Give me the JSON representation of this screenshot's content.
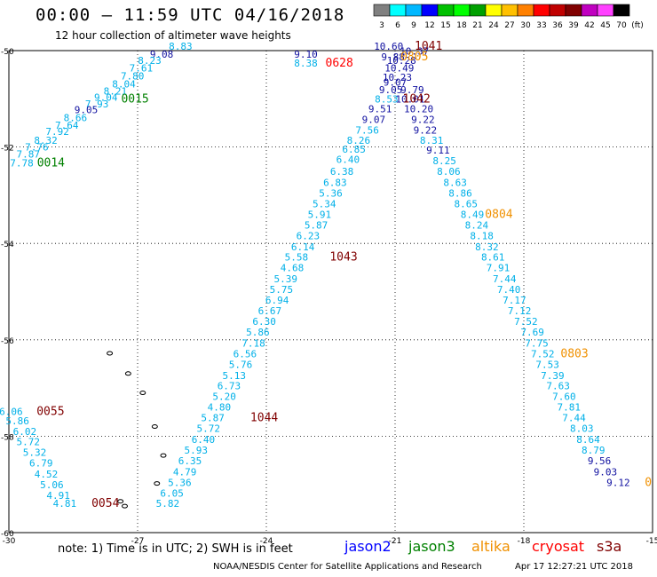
{
  "header": {
    "title": "00:00 – 11:59 UTC 04/16/2018",
    "subtitle": "12 hour collection of altimeter wave heights"
  },
  "colorbar": {
    "labels": [
      "3",
      "6",
      "9",
      "12",
      "15",
      "18",
      "21",
      "24",
      "27",
      "30",
      "33",
      "36",
      "39",
      "42",
      "45",
      "70",
      "(ft)"
    ],
    "colors": [
      "#808080",
      "#00ffff",
      "#00b8ff",
      "#0000ff",
      "#00c000",
      "#00ff00",
      "#00a000",
      "#ffff00",
      "#ffc000",
      "#ff8000",
      "#ff0000",
      "#c00000",
      "#800000",
      "#c000c0",
      "#ff40ff",
      "#000000"
    ]
  },
  "axes": {
    "lon_labels": [
      {
        "lon": -30,
        "text": "-30"
      },
      {
        "lon": -27,
        "text": "-27"
      },
      {
        "lon": -24,
        "text": "-24"
      },
      {
        "lon": -21,
        "text": "-21"
      },
      {
        "lon": -18,
        "text": "-18"
      },
      {
        "lon": -15,
        "text": "-15"
      }
    ],
    "lat_labels": [
      {
        "lat": -50,
        "text": "-50"
      },
      {
        "lat": -52,
        "text": "-52"
      },
      {
        "lat": -54,
        "text": "-54"
      },
      {
        "lat": -56,
        "text": "-56"
      },
      {
        "lat": -58,
        "text": "-58"
      },
      {
        "lat": -60,
        "text": "-60"
      }
    ],
    "lon_range": [
      -30,
      -15
    ],
    "lat_range": [
      -60,
      -50
    ]
  },
  "series_colors": {
    "cyan": "#00b0e8",
    "navy": "#1010a0",
    "green": "#008000",
    "orange": "#f09000",
    "red": "#ff0000",
    "dark_red": "#800000"
  },
  "labels": [
    {
      "lon": -26.0,
      "lat": -49.98,
      "text": "8.83",
      "c": "cyan"
    },
    {
      "lon": -26.44,
      "lat": -50.15,
      "text": "9.08",
      "c": "navy"
    },
    {
      "lon": -26.72,
      "lat": -50.28,
      "text": "8.23",
      "c": "cyan"
    },
    {
      "lon": -26.92,
      "lat": -50.43,
      "text": "7.61",
      "c": "cyan"
    },
    {
      "lon": -27.12,
      "lat": -50.6,
      "text": "7.80",
      "c": "cyan"
    },
    {
      "lon": -27.32,
      "lat": -50.76,
      "text": "8.04",
      "c": "cyan"
    },
    {
      "lon": -27.52,
      "lat": -50.91,
      "text": "8.21",
      "c": "cyan"
    },
    {
      "lon": -27.74,
      "lat": -51.04,
      "text": "9.04",
      "c": "cyan"
    },
    {
      "lon": -27.95,
      "lat": -51.18,
      "text": "7.93",
      "c": "cyan"
    },
    {
      "lon": -28.2,
      "lat": -51.3,
      "text": "9.05",
      "c": "navy"
    },
    {
      "lon": -28.45,
      "lat": -51.46,
      "text": "8.66",
      "c": "cyan"
    },
    {
      "lon": -28.65,
      "lat": -51.62,
      "text": "7.64",
      "c": "cyan"
    },
    {
      "lon": -28.87,
      "lat": -51.75,
      "text": "7.92",
      "c": "cyan"
    },
    {
      "lon": -29.14,
      "lat": -51.93,
      "text": "8.32",
      "c": "cyan"
    },
    {
      "lon": -29.35,
      "lat": -52.07,
      "text": "7.76",
      "c": "cyan"
    },
    {
      "lon": -29.55,
      "lat": -52.22,
      "text": "7.87",
      "c": "cyan"
    },
    {
      "lon": -29.7,
      "lat": -52.4,
      "text": "7.78",
      "c": "cyan"
    },
    {
      "lon": -29.02,
      "lat": -52.4,
      "text": "0014",
      "c": "green",
      "id": true
    },
    {
      "lon": -27.06,
      "lat": -51.08,
      "text": "0015",
      "c": "green",
      "id": true
    },
    {
      "lon": -23.08,
      "lat": -50.15,
      "text": "9.10",
      "c": "navy"
    },
    {
      "lon": -23.08,
      "lat": -50.33,
      "text": "8.38",
      "c": "cyan"
    },
    {
      "lon": -22.3,
      "lat": -50.33,
      "text": "0628",
      "c": "red",
      "id": true
    },
    {
      "lon": -21.15,
      "lat": -49.98,
      "text": "10.60",
      "c": "navy"
    },
    {
      "lon": -20.55,
      "lat": -50.08,
      "text": "10.37",
      "c": "navy"
    },
    {
      "lon": -21.05,
      "lat": -50.2,
      "text": "9.88",
      "c": "navy"
    },
    {
      "lon": -20.85,
      "lat": -50.28,
      "text": "10.28",
      "c": "navy"
    },
    {
      "lon": -20.9,
      "lat": -50.43,
      "text": "10.49",
      "c": "navy"
    },
    {
      "lon": -20.95,
      "lat": -50.63,
      "text": "10.23",
      "c": "navy"
    },
    {
      "lon": -21.0,
      "lat": -50.73,
      "text": "9.07",
      "c": "navy"
    },
    {
      "lon": -21.1,
      "lat": -50.88,
      "text": "9.05",
      "c": "navy"
    },
    {
      "lon": -20.6,
      "lat": -50.88,
      "text": "9.79",
      "c": "navy"
    },
    {
      "lon": -21.2,
      "lat": -51.08,
      "text": "8.53",
      "c": "cyan"
    },
    {
      "lon": -20.65,
      "lat": -51.08,
      "text": "10.01",
      "c": "navy"
    },
    {
      "lon": -21.35,
      "lat": -51.28,
      "text": "9.51",
      "c": "navy"
    },
    {
      "lon": -20.45,
      "lat": -51.28,
      "text": "10.20",
      "c": "navy"
    },
    {
      "lon": -21.5,
      "lat": -51.5,
      "text": "9.07",
      "c": "navy"
    },
    {
      "lon": -20.35,
      "lat": -51.5,
      "text": "9.22",
      "c": "navy"
    },
    {
      "lon": -21.65,
      "lat": -51.72,
      "text": "7.56",
      "c": "cyan"
    },
    {
      "lon": -20.3,
      "lat": -51.72,
      "text": "9.22",
      "c": "navy"
    },
    {
      "lon": -20.22,
      "lat": -49.98,
      "text": "1041",
      "c": "dark_red",
      "id": true
    },
    {
      "lon": -20.55,
      "lat": -50.2,
      "text": "0805",
      "c": "orange",
      "id": true
    },
    {
      "lon": -20.5,
      "lat": -51.08,
      "text": "1042",
      "c": "dark_red",
      "id": true
    },
    {
      "lon": -21.85,
      "lat": -51.93,
      "text": "8.26",
      "c": "cyan"
    },
    {
      "lon": -21.96,
      "lat": -52.12,
      "text": "6.85",
      "c": "cyan"
    },
    {
      "lon": -22.1,
      "lat": -52.33,
      "text": "6.40",
      "c": "cyan"
    },
    {
      "lon": -22.24,
      "lat": -52.58,
      "text": "6.38",
      "c": "cyan"
    },
    {
      "lon": -22.4,
      "lat": -52.81,
      "text": "6.83",
      "c": "cyan"
    },
    {
      "lon": -22.5,
      "lat": -53.03,
      "text": "5.36",
      "c": "cyan"
    },
    {
      "lon": -22.65,
      "lat": -53.25,
      "text": "5.34",
      "c": "cyan"
    },
    {
      "lon": -22.76,
      "lat": -53.47,
      "text": "5.91",
      "c": "cyan"
    },
    {
      "lon": -22.84,
      "lat": -53.69,
      "text": "5.87",
      "c": "cyan"
    },
    {
      "lon": -23.03,
      "lat": -53.91,
      "text": "6.23",
      "c": "cyan"
    },
    {
      "lon": -23.15,
      "lat": -54.14,
      "text": "6.14",
      "c": "cyan"
    },
    {
      "lon": -23.3,
      "lat": -54.36,
      "text": "5.58",
      "c": "cyan"
    },
    {
      "lon": -23.4,
      "lat": -54.58,
      "text": "4.68",
      "c": "cyan"
    },
    {
      "lon": -23.55,
      "lat": -54.81,
      "text": "5.39",
      "c": "cyan"
    },
    {
      "lon": -23.65,
      "lat": -55.03,
      "text": "5.75",
      "c": "cyan"
    },
    {
      "lon": -23.75,
      "lat": -55.25,
      "text": "6.94",
      "c": "cyan"
    },
    {
      "lon": -23.92,
      "lat": -55.47,
      "text": "6.67",
      "c": "cyan"
    },
    {
      "lon": -24.05,
      "lat": -55.69,
      "text": "6.30",
      "c": "cyan"
    },
    {
      "lon": -24.2,
      "lat": -55.91,
      "text": "5.86",
      "c": "cyan"
    },
    {
      "lon": -24.3,
      "lat": -56.14,
      "text": "7.18",
      "c": "cyan"
    },
    {
      "lon": -24.5,
      "lat": -56.36,
      "text": "6.56",
      "c": "cyan"
    },
    {
      "lon": -24.6,
      "lat": -56.58,
      "text": "5.76",
      "c": "cyan"
    },
    {
      "lon": -24.75,
      "lat": -56.81,
      "text": "5.13",
      "c": "cyan"
    },
    {
      "lon": -24.87,
      "lat": -57.03,
      "text": "6.73",
      "c": "cyan"
    },
    {
      "lon": -24.98,
      "lat": -57.25,
      "text": "5.20",
      "c": "cyan"
    },
    {
      "lon": -25.1,
      "lat": -57.47,
      "text": "4.80",
      "c": "cyan"
    },
    {
      "lon": -25.25,
      "lat": -57.69,
      "text": "5.87",
      "c": "cyan"
    },
    {
      "lon": -25.35,
      "lat": -57.91,
      "text": "5.72",
      "c": "cyan"
    },
    {
      "lon": -25.47,
      "lat": -58.14,
      "text": "6.40",
      "c": "cyan"
    },
    {
      "lon": -25.64,
      "lat": -58.36,
      "text": "5.93",
      "c": "cyan"
    },
    {
      "lon": -25.78,
      "lat": -58.58,
      "text": "6.35",
      "c": "cyan"
    },
    {
      "lon": -25.9,
      "lat": -58.81,
      "text": "4.79",
      "c": "cyan"
    },
    {
      "lon": -26.02,
      "lat": -59.03,
      "text": "5.36",
      "c": "cyan"
    },
    {
      "lon": -26.2,
      "lat": -59.25,
      "text": "6.05",
      "c": "cyan"
    },
    {
      "lon": -26.3,
      "lat": -59.47,
      "text": "5.82",
      "c": "cyan"
    },
    {
      "lon": -22.2,
      "lat": -54.36,
      "text": "1043",
      "c": "dark_red",
      "id": true
    },
    {
      "lon": -24.05,
      "lat": -57.69,
      "text": "1044",
      "c": "dark_red",
      "id": true
    },
    {
      "lon": -20.15,
      "lat": -51.93,
      "text": "8.31",
      "c": "cyan"
    },
    {
      "lon": -20.0,
      "lat": -52.14,
      "text": "9.11",
      "c": "navy"
    },
    {
      "lon": -19.85,
      "lat": -52.36,
      "text": "8.25",
      "c": "cyan"
    },
    {
      "lon": -19.75,
      "lat": -52.58,
      "text": "8.06",
      "c": "cyan"
    },
    {
      "lon": -19.6,
      "lat": -52.81,
      "text": "8.63",
      "c": "cyan"
    },
    {
      "lon": -19.48,
      "lat": -53.03,
      "text": "8.86",
      "c": "cyan"
    },
    {
      "lon": -19.35,
      "lat": -53.25,
      "text": "8.65",
      "c": "cyan"
    },
    {
      "lon": -19.2,
      "lat": -53.47,
      "text": "8.49",
      "c": "cyan"
    },
    {
      "lon": -19.1,
      "lat": -53.69,
      "text": "8.24",
      "c": "cyan"
    },
    {
      "lon": -18.98,
      "lat": -53.91,
      "text": "8.18",
      "c": "cyan"
    },
    {
      "lon": -18.86,
      "lat": -54.14,
      "text": "8.32",
      "c": "cyan"
    },
    {
      "lon": -18.72,
      "lat": -54.36,
      "text": "8.61",
      "c": "cyan"
    },
    {
      "lon": -18.6,
      "lat": -54.58,
      "text": "7.91",
      "c": "cyan"
    },
    {
      "lon": -18.45,
      "lat": -54.81,
      "text": "7.44",
      "c": "cyan"
    },
    {
      "lon": -18.35,
      "lat": -55.03,
      "text": "7.40",
      "c": "cyan"
    },
    {
      "lon": -18.22,
      "lat": -55.25,
      "text": "7.17",
      "c": "cyan"
    },
    {
      "lon": -18.1,
      "lat": -55.47,
      "text": "7.12",
      "c": "cyan"
    },
    {
      "lon": -17.95,
      "lat": -55.69,
      "text": "7.52",
      "c": "cyan"
    },
    {
      "lon": -17.8,
      "lat": -55.91,
      "text": "7.69",
      "c": "cyan"
    },
    {
      "lon": -17.7,
      "lat": -56.14,
      "text": "7.75",
      "c": "cyan"
    },
    {
      "lon": -17.56,
      "lat": -56.36,
      "text": "7.52",
      "c": "cyan"
    },
    {
      "lon": -17.45,
      "lat": -56.58,
      "text": "7.53",
      "c": "cyan"
    },
    {
      "lon": -17.33,
      "lat": -56.81,
      "text": "7.39",
      "c": "cyan"
    },
    {
      "lon": -17.2,
      "lat": -57.03,
      "text": "7.63",
      "c": "cyan"
    },
    {
      "lon": -17.06,
      "lat": -57.25,
      "text": "7.60",
      "c": "cyan"
    },
    {
      "lon": -16.95,
      "lat": -57.47,
      "text": "7.81",
      "c": "cyan"
    },
    {
      "lon": -16.83,
      "lat": -57.69,
      "text": "7.44",
      "c": "cyan"
    },
    {
      "lon": -16.65,
      "lat": -57.91,
      "text": "8.03",
      "c": "cyan"
    },
    {
      "lon": -16.5,
      "lat": -58.14,
      "text": "8.64",
      "c": "cyan"
    },
    {
      "lon": -16.38,
      "lat": -58.36,
      "text": "8.79",
      "c": "cyan"
    },
    {
      "lon": -16.24,
      "lat": -58.58,
      "text": "9.56",
      "c": "navy"
    },
    {
      "lon": -16.1,
      "lat": -58.81,
      "text": "9.03",
      "c": "navy"
    },
    {
      "lon": -15.8,
      "lat": -59.03,
      "text": "9.12",
      "c": "navy"
    },
    {
      "lon": -18.58,
      "lat": -53.47,
      "text": "0804",
      "c": "orange",
      "id": true
    },
    {
      "lon": -16.82,
      "lat": -56.36,
      "text": "0803",
      "c": "orange",
      "id": true
    },
    {
      "lon": -15.1,
      "lat": -59.03,
      "text": "0",
      "c": "orange",
      "id": true
    },
    {
      "lon": -29.95,
      "lat": -57.56,
      "text": "6.06",
      "c": "cyan"
    },
    {
      "lon": -29.8,
      "lat": -57.75,
      "text": "5.86",
      "c": "cyan"
    },
    {
      "lon": -29.63,
      "lat": -57.97,
      "text": "6.02",
      "c": "cyan"
    },
    {
      "lon": -29.55,
      "lat": -58.19,
      "text": "5.72",
      "c": "cyan"
    },
    {
      "lon": -29.4,
      "lat": -58.41,
      "text": "5.32",
      "c": "cyan"
    },
    {
      "lon": -29.25,
      "lat": -58.63,
      "text": "6.79",
      "c": "cyan"
    },
    {
      "lon": -29.13,
      "lat": -58.86,
      "text": "4.52",
      "c": "cyan"
    },
    {
      "lon": -29.0,
      "lat": -59.08,
      "text": "5.06",
      "c": "cyan"
    },
    {
      "lon": -28.85,
      "lat": -59.3,
      "text": "4.91",
      "c": "cyan"
    },
    {
      "lon": -28.7,
      "lat": -59.47,
      "text": "4.81",
      "c": "cyan"
    },
    {
      "lon": -29.03,
      "lat": -57.56,
      "text": "0055",
      "c": "dark_red",
      "id": true
    },
    {
      "lon": -27.75,
      "lat": -59.47,
      "text": "0054",
      "c": "dark_red",
      "id": true
    }
  ],
  "footer": {
    "note": "note: 1) Time is in UTC; 2) SWH is in feet",
    "legend": [
      {
        "name": "jason2",
        "color": "#0000ff"
      },
      {
        "name": "jason3",
        "color": "#008000"
      },
      {
        "name": "altika",
        "color": "#f09000"
      },
      {
        "name": "cryosat",
        "color": "#ff0000"
      },
      {
        "name": "s3a",
        "color": "#800000"
      }
    ],
    "credit": "NOAA/NESDIS Center for Satellite Applications and Research",
    "timestamp": "Apr 17 12:27:21 UTC 2018"
  }
}
